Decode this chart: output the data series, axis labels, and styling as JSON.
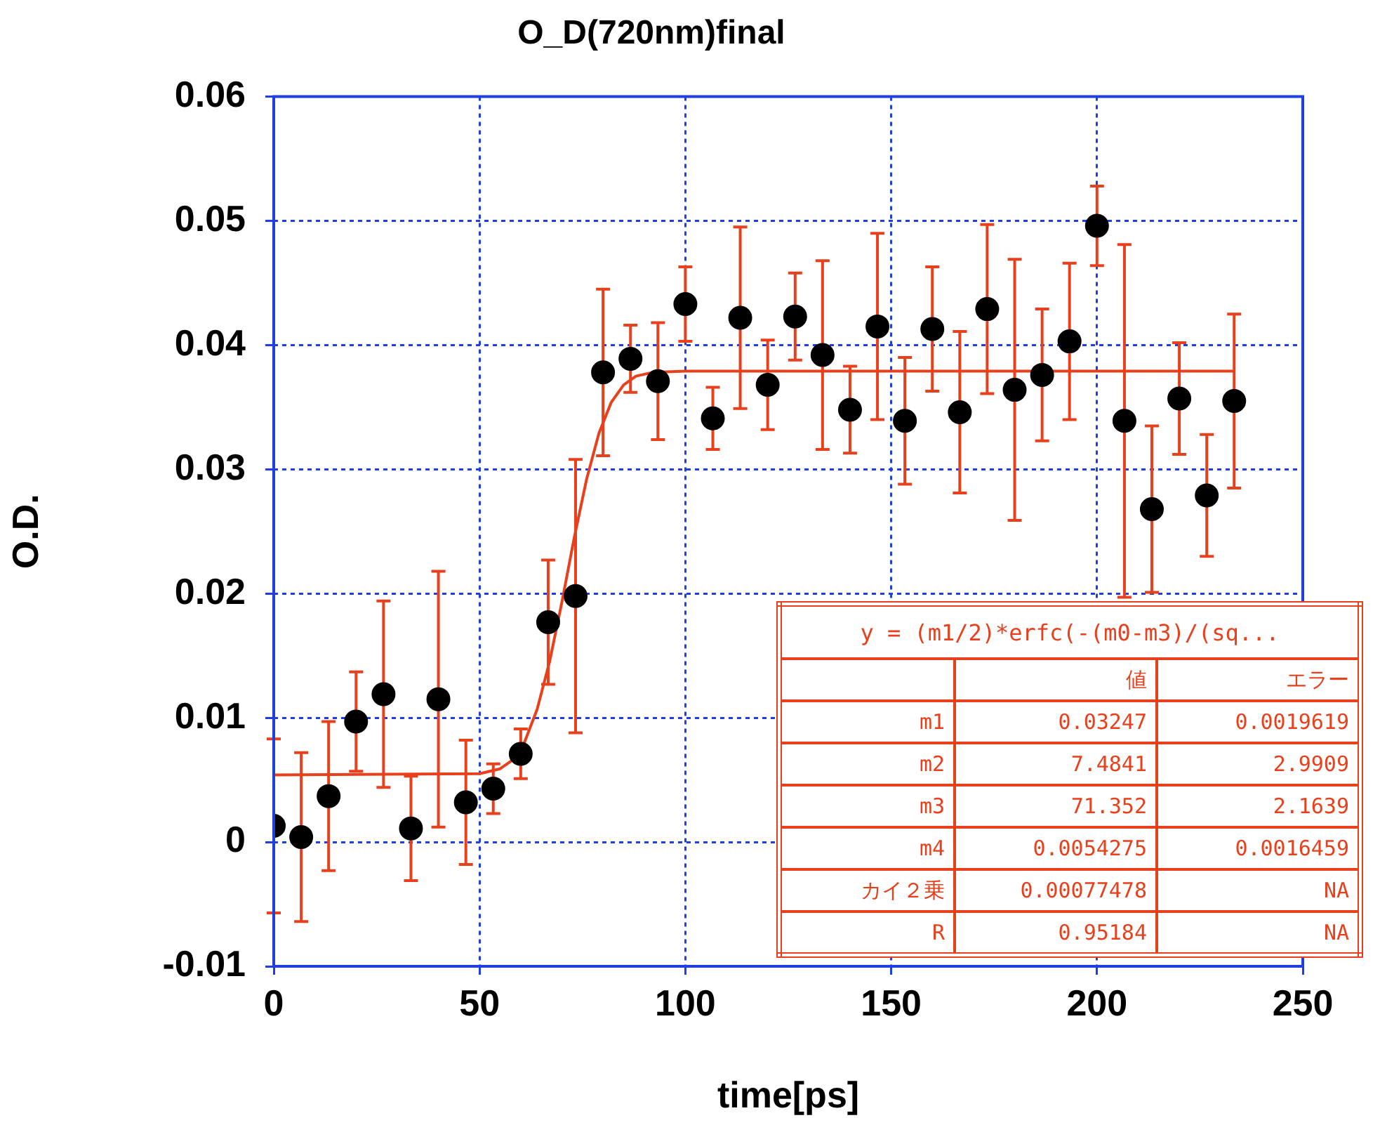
{
  "chart_data": {
    "type": "scatter",
    "title": "O_D(720nm)final",
    "xlabel": "time[ps]",
    "ylabel": "O.D.",
    "xlim": [
      0,
      250
    ],
    "xticks": [
      0,
      50,
      100,
      150,
      200,
      250
    ],
    "ylim": [
      -0.01,
      0.06
    ],
    "yticks": [
      -0.01,
      0,
      0.01,
      0.02,
      0.03,
      0.04,
      0.05,
      0.06
    ],
    "grid": true,
    "legend": false,
    "marker": "circle",
    "series": [
      {
        "color": "#000000",
        "x": [
          0,
          6.67,
          13.33,
          20,
          26.67,
          33.33,
          40,
          46.67,
          53.33,
          60,
          66.67,
          73.33,
          80,
          86.67,
          93.33,
          100,
          106.67,
          113.33,
          120,
          126.67,
          133.33,
          140,
          146.67,
          153.33,
          160,
          166.67,
          173.33,
          180,
          186.67,
          193.33,
          200,
          206.67,
          213.33,
          220,
          226.67,
          233.33
        ],
        "values": [
          0.0013,
          0.0004,
          0.0037,
          0.0097,
          0.0119,
          0.0011,
          0.0115,
          0.0032,
          0.0043,
          0.0071,
          0.0177,
          0.0198,
          0.0378,
          0.0389,
          0.0371,
          0.0433,
          0.0341,
          0.0422,
          0.0368,
          0.0423,
          0.0392,
          0.0348,
          0.0415,
          0.0339,
          0.0413,
          0.0346,
          0.0429,
          0.0364,
          0.0376,
          0.0403,
          0.0496,
          0.0339,
          0.0268,
          0.0357,
          0.0279,
          0.0355
        ],
        "errors": [
          0.007,
          0.0068,
          0.006,
          0.004,
          0.0075,
          0.0042,
          0.0103,
          0.005,
          0.002,
          0.002,
          0.005,
          0.011,
          0.0067,
          0.0027,
          0.0047,
          0.003,
          0.0025,
          0.0073,
          0.0036,
          0.0035,
          0.0076,
          0.0035,
          0.0075,
          0.0051,
          0.005,
          0.0065,
          0.0068,
          0.0105,
          0.0053,
          0.0063,
          0.0032,
          0.0142,
          0.0067,
          0.0045,
          0.0049,
          0.007
        ]
      },
      {
        "type": "line",
        "color": "#e8401c",
        "marker": "none",
        "x": [
          0,
          50,
          55,
          58,
          61,
          64,
          67,
          70,
          73,
          76,
          79,
          82,
          85,
          88,
          92,
          100,
          233.33
        ],
        "values": [
          0.0054,
          0.0055,
          0.0059,
          0.0066,
          0.0081,
          0.0107,
          0.0145,
          0.0193,
          0.0245,
          0.0292,
          0.0329,
          0.0354,
          0.0368,
          0.0375,
          0.0378,
          0.0379,
          0.0379
        ]
      }
    ],
    "annotations": [
      "y = (m1/2)*erfc(-(m0-m3)/(sq...",
      "値",
      "エラー",
      "m1",
      "0.03247",
      "0.0019619",
      "m2",
      "7.4841",
      "2.9909",
      "m3",
      "71.352",
      "2.1639",
      "m4",
      "0.0054275",
      "0.0016459",
      "カイ２乗",
      "0.00077478",
      "NA",
      "R",
      "0.95184",
      "NA"
    ]
  }
}
